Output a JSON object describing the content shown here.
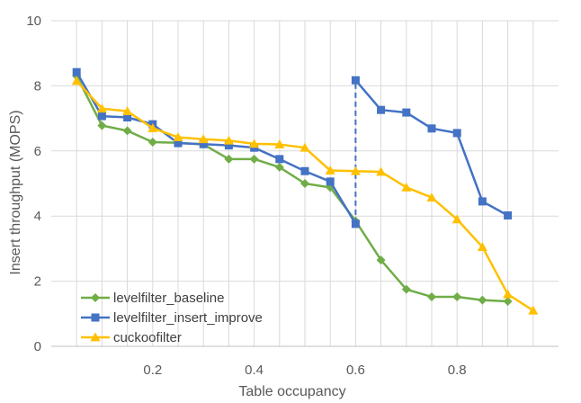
{
  "chart_data": {
    "type": "line",
    "title": "",
    "xlabel": "Table occupancy",
    "ylabel": "Insert throughput (MOPS)",
    "xlim": [
      0.0,
      1.0
    ],
    "ylim": [
      0,
      10
    ],
    "x_ticks": [
      0.2,
      0.4,
      0.6,
      0.8
    ],
    "x_tick_labels": [
      "0.2",
      "0.4",
      "0.6",
      "0.8"
    ],
    "y_ticks": [
      0,
      2,
      4,
      6,
      8,
      10
    ],
    "y_tick_labels": [
      "0",
      "2",
      "4",
      "6",
      "8",
      "10"
    ],
    "grid": true,
    "legend_position": "bottom-left",
    "series": [
      {
        "name": "levelfilter_baseline",
        "color": "#70AD47",
        "marker": "diamond",
        "x": [
          0.05,
          0.1,
          0.15,
          0.2,
          0.25,
          0.3,
          0.35,
          0.4,
          0.45,
          0.5,
          0.55,
          0.6,
          0.65,
          0.7,
          0.75,
          0.8,
          0.85,
          0.9
        ],
        "y": [
          8.3,
          6.78,
          6.62,
          6.27,
          6.25,
          6.2,
          5.75,
          5.75,
          5.5,
          5.0,
          4.88,
          3.85,
          2.65,
          1.75,
          1.52,
          1.52,
          1.42,
          1.38
        ]
      },
      {
        "name": "levelfilter_insert_improve",
        "color": "#4472C4",
        "marker": "square",
        "x": [
          0.05,
          0.1,
          0.15,
          0.2,
          0.25,
          0.3,
          0.35,
          0.4,
          0.45,
          0.5,
          0.55,
          0.6,
          0.6,
          0.65,
          0.7,
          0.75,
          0.8,
          0.85,
          0.9
        ],
        "y": [
          8.42,
          7.07,
          7.03,
          6.82,
          6.24,
          6.21,
          6.17,
          6.1,
          5.75,
          5.38,
          5.06,
          3.76,
          8.17,
          7.26,
          7.18,
          6.69,
          6.55,
          4.45,
          4.02
        ],
        "segments": [
          [
            0,
            11
          ],
          [
            12,
            18
          ]
        ],
        "jump_line": {
          "x": 0.6,
          "from": 3.76,
          "to": 8.17,
          "style": "dashed"
        }
      },
      {
        "name": "cuckoofilter",
        "color": "#FFC000",
        "marker": "triangle",
        "x": [
          0.05,
          0.1,
          0.15,
          0.2,
          0.25,
          0.3,
          0.35,
          0.4,
          0.45,
          0.5,
          0.55,
          0.6,
          0.65,
          0.7,
          0.75,
          0.8,
          0.85,
          0.9,
          0.95
        ],
        "y": [
          8.15,
          7.3,
          7.22,
          6.7,
          6.42,
          6.36,
          6.32,
          6.22,
          6.2,
          6.1,
          5.4,
          5.38,
          5.36,
          4.88,
          4.57,
          3.9,
          3.05,
          1.6,
          1.1
        ]
      }
    ]
  }
}
